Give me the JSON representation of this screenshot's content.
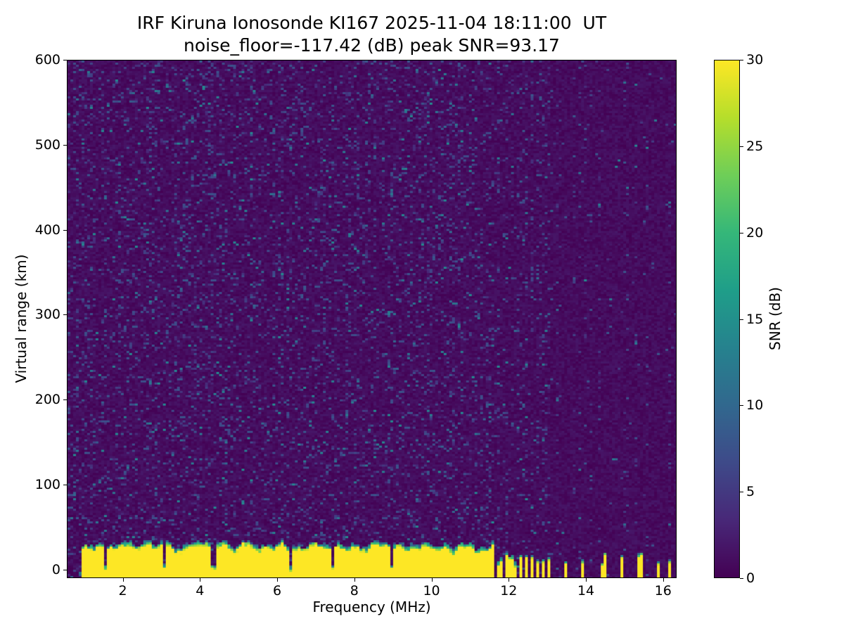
{
  "chart_data": {
    "type": "heatmap",
    "title": "IRF Kiruna Ionosonde KI167 2025-11-04 18:11:00  UT",
    "subtitle": "noise_floor=-117.42 (dB) peak SNR=93.17",
    "station": "IRF Kiruna Ionosonde KI167",
    "timestamp_ut": "2025-11-04 18:11:00",
    "stats": {
      "noise_floor_db": -117.42,
      "peak_snr_db": 93.17
    },
    "xlabel": "Frequency (MHz)",
    "ylabel": "Virtual range (km)",
    "xlim": [
      0.55,
      16.35
    ],
    "ylim": [
      -10,
      600
    ],
    "x_ticks": [
      2,
      4,
      6,
      8,
      10,
      12,
      14,
      16
    ],
    "y_ticks": [
      0,
      100,
      200,
      300,
      400,
      500,
      600
    ],
    "grid": false,
    "colorbar": {
      "label": "SNR (dB)",
      "min": 0,
      "max": 30,
      "ticks": [
        0,
        5,
        10,
        15,
        20,
        25,
        30
      ],
      "colormap": "viridis",
      "colormap_stops": [
        "#440154",
        "#482878",
        "#3e4a89",
        "#31688e",
        "#26828e",
        "#1f9e89",
        "#35b779",
        "#6ece58",
        "#b5de2b",
        "#fde725"
      ]
    },
    "features": {
      "background_snr_db": [
        0,
        2
      ],
      "noise_speckle_snr_db": [
        3,
        14
      ],
      "ground_clutter": {
        "snr_db": 30,
        "top_km_range": [
          20,
          38
        ],
        "freq_range_mhz": [
          0.95,
          11.62
        ]
      },
      "notch_freqs_mhz": [
        1.52,
        3.06,
        4.32,
        6.34,
        7.44,
        8.96
      ],
      "stripe_freqs_mhz": [
        11.7,
        11.82,
        11.94,
        12.06,
        12.18,
        12.3,
        12.44,
        12.58,
        12.72,
        12.88,
        13.02,
        13.45,
        13.9,
        14.45,
        14.95,
        15.4,
        15.9,
        16.15
      ],
      "quiet_band_mhz": [
        13.15,
        16.35
      ]
    }
  }
}
